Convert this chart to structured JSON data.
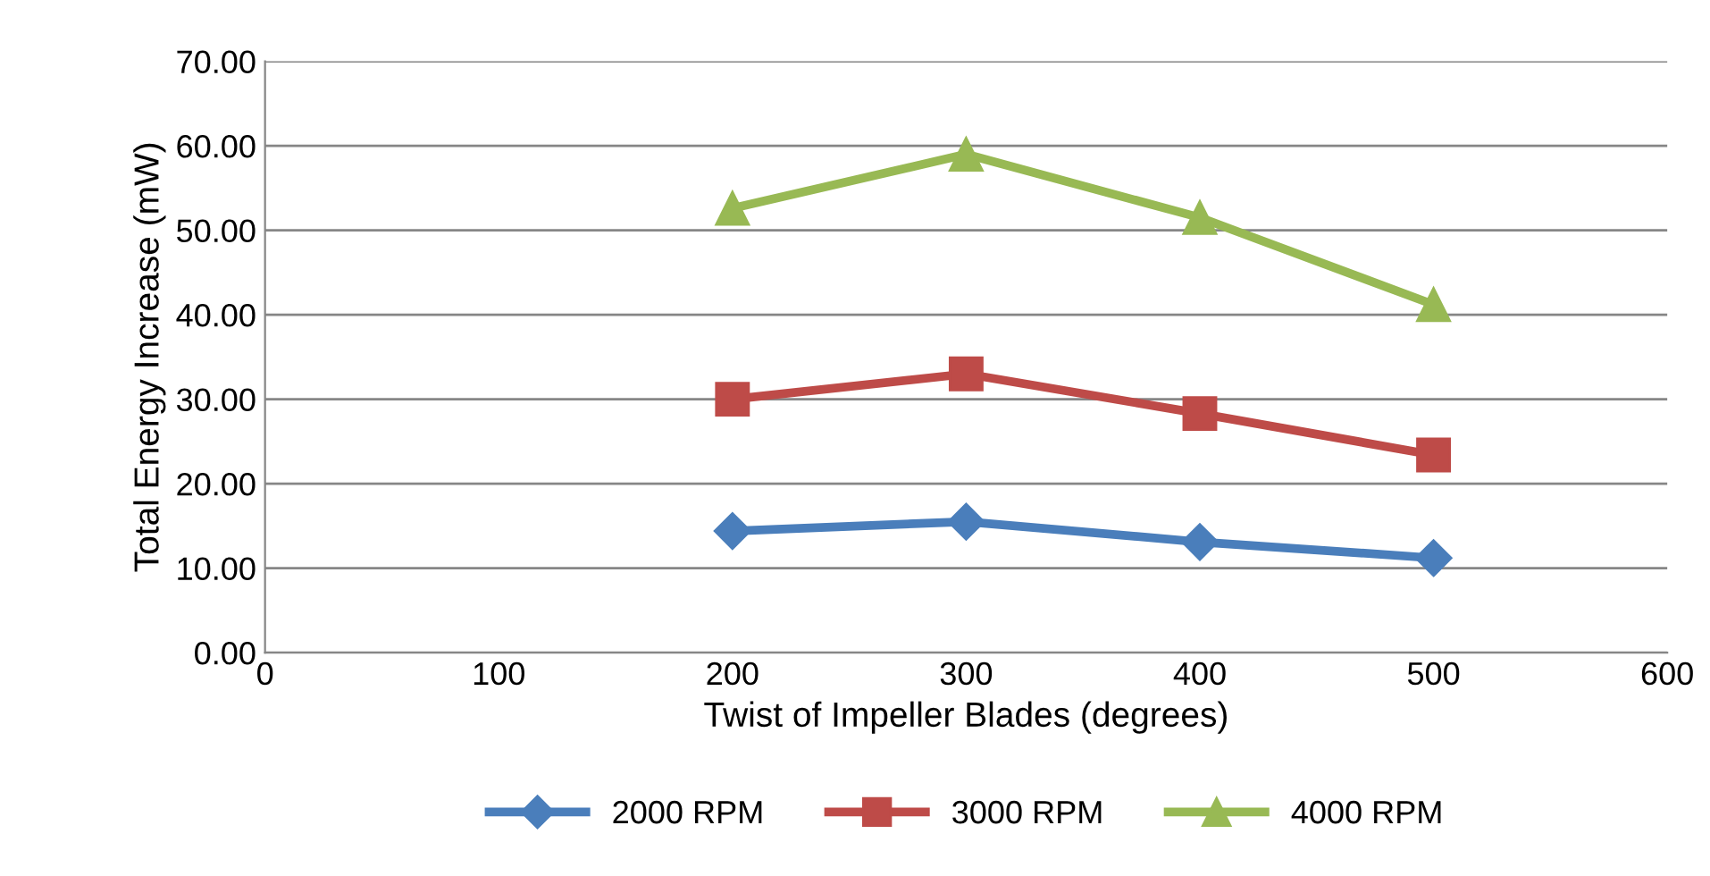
{
  "chart_data": {
    "type": "line",
    "xlabel": "Twist of Impeller Blades (degrees)",
    "ylabel": "Total Energy Increase (mW)",
    "x": [
      200,
      300,
      400,
      500
    ],
    "series": [
      {
        "name": "2000 RPM",
        "color": "#4a7ebb",
        "values": [
          14.4,
          15.5,
          13.1,
          11.2
        ],
        "marker": "diamond"
      },
      {
        "name": "3000 RPM",
        "color": "#be4b48",
        "values": [
          30.0,
          33.0,
          28.3,
          23.4
        ],
        "marker": "square"
      },
      {
        "name": "4000 RPM",
        "color": "#98b954",
        "values": [
          52.6,
          59.0,
          51.5,
          41.2
        ],
        "marker": "triangle"
      }
    ],
    "xlim": [
      0,
      600
    ],
    "xticks": [
      0,
      100,
      200,
      300,
      400,
      500,
      600
    ],
    "ylim": [
      0,
      70
    ],
    "yticks": [
      {
        "value": 0,
        "label": "0.00"
      },
      {
        "value": 10,
        "label": "10.00"
      },
      {
        "value": 20,
        "label": "20.00"
      },
      {
        "value": 30,
        "label": "30.00"
      },
      {
        "value": 40,
        "label": "40.00"
      },
      {
        "value": 50,
        "label": "50.00"
      },
      {
        "value": 60,
        "label": "60.00"
      },
      {
        "value": 70,
        "label": "70.00"
      }
    ],
    "grid": "y",
    "legend": "bottom",
    "line_style": "solid"
  }
}
